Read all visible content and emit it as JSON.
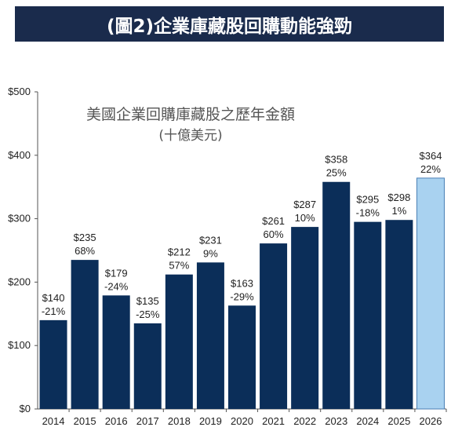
{
  "banner": {
    "title": "(圖2)企業庫藏股回購動能強勁"
  },
  "colors": {
    "banner_bg": "#1a2b4c",
    "bar_actual": "#0b2e59",
    "bar_forecast": "#a9d2f0",
    "forecast_border": "#4a7fb5"
  },
  "chart_data": {
    "type": "bar",
    "title": "美國企業回購庫藏股之歷年金額",
    "subtitle": "(十億美元)",
    "categories": [
      "2014",
      "2015",
      "2016",
      "2017",
      "2018",
      "2019",
      "2020",
      "2021",
      "2022",
      "2023",
      "2024",
      "2025",
      "2026"
    ],
    "values": [
      140,
      235,
      179,
      135,
      212,
      231,
      163,
      261,
      287,
      358,
      295,
      298,
      364
    ],
    "value_labels": [
      "$140",
      "$235",
      "$179",
      "$135",
      "$212",
      "$231",
      "$163",
      "$261",
      "$287",
      "$358",
      "$295",
      "$298",
      "$364"
    ],
    "change_labels": [
      "-21%",
      "68%",
      "-24%",
      "-25%",
      "57%",
      "9%",
      "-29%",
      "60%",
      "10%",
      "25%",
      "-18%",
      "1%",
      "22%"
    ],
    "forecast_index": 12,
    "ylim": [
      0,
      500
    ],
    "yticks": [
      0,
      100,
      200,
      300,
      400,
      500
    ],
    "ytick_labels": [
      "$0",
      "$100",
      "$200",
      "$300",
      "$400",
      "$500"
    ],
    "grid": false,
    "xlabel": "",
    "ylabel": ""
  }
}
